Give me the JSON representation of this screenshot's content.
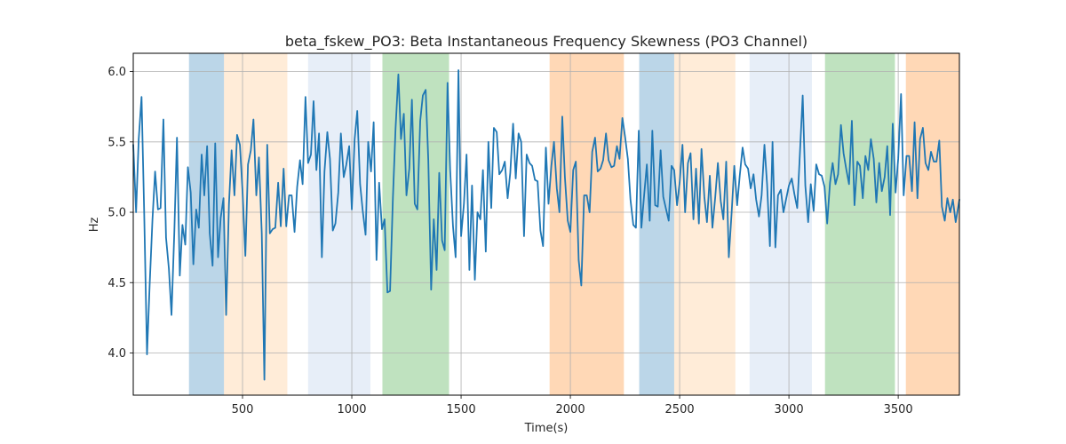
{
  "chart_data": {
    "type": "line",
    "title": "beta_fskew_PO3: Beta Instantaneous Frequency Skewness (PO3 Channel)",
    "xlabel": "Time(s)",
    "ylabel": "Hz",
    "xlim": [
      0,
      3780
    ],
    "ylim": [
      3.7,
      6.13
    ],
    "xticks": [
      500,
      1000,
      1500,
      2000,
      2500,
      3000,
      3500
    ],
    "yticks": [
      4.0,
      4.5,
      5.0,
      5.5,
      6.0
    ],
    "xtick_labels": [
      "500",
      "1000",
      "1500",
      "2000",
      "2500",
      "3000",
      "3500"
    ],
    "ytick_labels": [
      "4.0",
      "4.5",
      "5.0",
      "5.5",
      "6.0"
    ],
    "grid": true,
    "line_color": "#1f77b4",
    "shaded_regions": [
      {
        "start": 255,
        "end": 415,
        "color": "#1f77b4",
        "opacity": 0.3
      },
      {
        "start": 415,
        "end": 705,
        "color": "#ffbf7f",
        "opacity": 0.3
      },
      {
        "start": 800,
        "end": 1085,
        "color": "#aec7e8",
        "opacity": 0.3
      },
      {
        "start": 1140,
        "end": 1445,
        "color": "#2ca02c",
        "opacity": 0.3
      },
      {
        "start": 1905,
        "end": 2245,
        "color": "#ff7f0e",
        "opacity": 0.3
      },
      {
        "start": 2315,
        "end": 2475,
        "color": "#1f77b4",
        "opacity": 0.3
      },
      {
        "start": 2475,
        "end": 2755,
        "color": "#ffbf7f",
        "opacity": 0.3
      },
      {
        "start": 2820,
        "end": 3105,
        "color": "#aec7e8",
        "opacity": 0.3
      },
      {
        "start": 3165,
        "end": 3485,
        "color": "#2ca02c",
        "opacity": 0.3
      },
      {
        "start": 3535,
        "end": 3780,
        "color": "#ff7f0e",
        "opacity": 0.3
      }
    ],
    "series": [
      {
        "values": [
          [
            0,
            5.48
          ],
          [
            13,
            5.0
          ],
          [
            25,
            5.52
          ],
          [
            38,
            5.82
          ],
          [
            50,
            5.0
          ],
          [
            63,
            3.99
          ],
          [
            75,
            4.48
          ],
          [
            88,
            4.95
          ],
          [
            100,
            5.29
          ],
          [
            113,
            5.02
          ],
          [
            125,
            5.03
          ],
          [
            138,
            5.66
          ],
          [
            150,
            4.82
          ],
          [
            163,
            4.6
          ],
          [
            175,
            4.27
          ],
          [
            188,
            4.86
          ],
          [
            200,
            5.53
          ],
          [
            213,
            4.55
          ],
          [
            225,
            4.91
          ],
          [
            238,
            4.77
          ],
          [
            250,
            5.32
          ],
          [
            263,
            5.14
          ],
          [
            275,
            4.63
          ],
          [
            288,
            5.02
          ],
          [
            300,
            4.89
          ],
          [
            313,
            5.41
          ],
          [
            325,
            5.12
          ],
          [
            338,
            5.47
          ],
          [
            350,
            4.85
          ],
          [
            363,
            4.62
          ],
          [
            375,
            5.49
          ],
          [
            388,
            4.68
          ],
          [
            400,
            4.96
          ],
          [
            413,
            5.1
          ],
          [
            425,
            4.27
          ],
          [
            438,
            5.06
          ],
          [
            450,
            5.44
          ],
          [
            463,
            5.12
          ],
          [
            475,
            5.55
          ],
          [
            488,
            5.48
          ],
          [
            500,
            5.15
          ],
          [
            513,
            4.69
          ],
          [
            525,
            5.34
          ],
          [
            538,
            5.44
          ],
          [
            550,
            5.66
          ],
          [
            563,
            5.12
          ],
          [
            575,
            5.39
          ],
          [
            588,
            4.85
          ],
          [
            600,
            3.81
          ],
          [
            613,
            5.48
          ],
          [
            625,
            4.85
          ],
          [
            638,
            4.88
          ],
          [
            650,
            4.89
          ],
          [
            663,
            5.21
          ],
          [
            675,
            4.9
          ],
          [
            688,
            5.31
          ],
          [
            700,
            4.9
          ],
          [
            713,
            5.12
          ],
          [
            725,
            5.12
          ],
          [
            738,
            4.86
          ],
          [
            750,
            5.18
          ],
          [
            763,
            5.37
          ],
          [
            775,
            5.2
          ],
          [
            788,
            5.82
          ],
          [
            800,
            5.35
          ],
          [
            813,
            5.41
          ],
          [
            825,
            5.79
          ],
          [
            838,
            5.3
          ],
          [
            850,
            5.56
          ],
          [
            863,
            4.68
          ],
          [
            875,
            5.29
          ],
          [
            888,
            5.57
          ],
          [
            900,
            5.38
          ],
          [
            913,
            4.87
          ],
          [
            925,
            4.92
          ],
          [
            938,
            5.14
          ],
          [
            950,
            5.56
          ],
          [
            963,
            5.25
          ],
          [
            975,
            5.34
          ],
          [
            988,
            5.47
          ],
          [
            1000,
            5.02
          ],
          [
            1013,
            5.52
          ],
          [
            1025,
            5.72
          ],
          [
            1038,
            5.2
          ],
          [
            1050,
            5.01
          ],
          [
            1063,
            4.84
          ],
          [
            1075,
            5.5
          ],
          [
            1088,
            5.29
          ],
          [
            1100,
            5.64
          ],
          [
            1113,
            4.66
          ],
          [
            1125,
            5.21
          ],
          [
            1138,
            4.88
          ],
          [
            1150,
            4.95
          ],
          [
            1163,
            4.43
          ],
          [
            1175,
            4.44
          ],
          [
            1188,
            5.1
          ],
          [
            1200,
            5.59
          ],
          [
            1213,
            5.98
          ],
          [
            1225,
            5.52
          ],
          [
            1238,
            5.7
          ],
          [
            1250,
            5.12
          ],
          [
            1263,
            5.31
          ],
          [
            1275,
            5.8
          ],
          [
            1288,
            5.06
          ],
          [
            1300,
            5.02
          ],
          [
            1313,
            5.65
          ],
          [
            1325,
            5.83
          ],
          [
            1338,
            5.87
          ],
          [
            1350,
            5.37
          ],
          [
            1363,
            4.45
          ],
          [
            1375,
            4.95
          ],
          [
            1388,
            4.59
          ],
          [
            1400,
            5.28
          ],
          [
            1413,
            4.8
          ],
          [
            1425,
            4.73
          ],
          [
            1438,
            5.92
          ],
          [
            1450,
            5.3
          ],
          [
            1463,
            4.9
          ],
          [
            1475,
            4.68
          ],
          [
            1488,
            6.01
          ],
          [
            1500,
            4.83
          ],
          [
            1513,
            5.06
          ],
          [
            1525,
            5.41
          ],
          [
            1538,
            4.59
          ],
          [
            1550,
            5.19
          ],
          [
            1563,
            4.52
          ],
          [
            1575,
            5.0
          ],
          [
            1588,
            4.95
          ],
          [
            1600,
            5.3
          ],
          [
            1613,
            4.72
          ],
          [
            1625,
            5.5
          ],
          [
            1638,
            5.03
          ],
          [
            1650,
            5.6
          ],
          [
            1663,
            5.57
          ],
          [
            1675,
            5.27
          ],
          [
            1688,
            5.3
          ],
          [
            1700,
            5.36
          ],
          [
            1713,
            5.1
          ],
          [
            1725,
            5.28
          ],
          [
            1738,
            5.63
          ],
          [
            1750,
            5.24
          ],
          [
            1763,
            5.56
          ],
          [
            1775,
            5.5
          ],
          [
            1788,
            4.83
          ],
          [
            1800,
            5.41
          ],
          [
            1813,
            5.35
          ],
          [
            1825,
            5.33
          ],
          [
            1838,
            5.23
          ],
          [
            1850,
            5.22
          ],
          [
            1863,
            4.87
          ],
          [
            1875,
            4.76
          ],
          [
            1888,
            5.46
          ],
          [
            1900,
            5.06
          ],
          [
            1913,
            5.33
          ],
          [
            1925,
            5.5
          ],
          [
            1938,
            5.17
          ],
          [
            1950,
            5.0
          ],
          [
            1963,
            5.68
          ],
          [
            1975,
            5.25
          ],
          [
            1988,
            4.94
          ],
          [
            2000,
            4.86
          ],
          [
            2013,
            5.3
          ],
          [
            2025,
            5.36
          ],
          [
            2038,
            4.66
          ],
          [
            2050,
            4.48
          ],
          [
            2063,
            5.12
          ],
          [
            2075,
            5.12
          ],
          [
            2088,
            5.0
          ],
          [
            2100,
            5.43
          ],
          [
            2113,
            5.53
          ],
          [
            2125,
            5.29
          ],
          [
            2138,
            5.31
          ],
          [
            2150,
            5.37
          ],
          [
            2163,
            5.56
          ],
          [
            2175,
            5.37
          ],
          [
            2188,
            5.32
          ],
          [
            2200,
            5.33
          ],
          [
            2213,
            5.47
          ],
          [
            2225,
            5.38
          ],
          [
            2238,
            5.67
          ],
          [
            2250,
            5.54
          ],
          [
            2263,
            5.38
          ],
          [
            2275,
            5.09
          ],
          [
            2288,
            4.91
          ],
          [
            2300,
            4.89
          ],
          [
            2313,
            5.58
          ],
          [
            2325,
            4.89
          ],
          [
            2338,
            5.13
          ],
          [
            2350,
            5.34
          ],
          [
            2363,
            4.94
          ],
          [
            2375,
            5.58
          ],
          [
            2388,
            5.05
          ],
          [
            2400,
            5.04
          ],
          [
            2413,
            5.44
          ],
          [
            2425,
            5.11
          ],
          [
            2438,
            5.02
          ],
          [
            2450,
            4.94
          ],
          [
            2463,
            5.33
          ],
          [
            2475,
            5.3
          ],
          [
            2488,
            5.05
          ],
          [
            2500,
            5.21
          ],
          [
            2513,
            5.48
          ],
          [
            2525,
            5.0
          ],
          [
            2538,
            5.35
          ],
          [
            2550,
            5.42
          ],
          [
            2563,
            4.95
          ],
          [
            2575,
            5.31
          ],
          [
            2588,
            4.92
          ],
          [
            2600,
            5.45
          ],
          [
            2613,
            5.11
          ],
          [
            2625,
            4.93
          ],
          [
            2638,
            5.26
          ],
          [
            2650,
            4.89
          ],
          [
            2663,
            5.11
          ],
          [
            2675,
            5.35
          ],
          [
            2688,
            5.08
          ],
          [
            2700,
            4.95
          ],
          [
            2713,
            5.36
          ],
          [
            2725,
            4.68
          ],
          [
            2738,
            5.0
          ],
          [
            2750,
            5.33
          ],
          [
            2763,
            5.05
          ],
          [
            2775,
            5.26
          ],
          [
            2788,
            5.46
          ],
          [
            2800,
            5.34
          ],
          [
            2813,
            5.31
          ],
          [
            2825,
            5.17
          ],
          [
            2838,
            5.27
          ],
          [
            2850,
            5.09
          ],
          [
            2863,
            4.97
          ],
          [
            2875,
            5.12
          ],
          [
            2888,
            5.48
          ],
          [
            2900,
            5.2
          ],
          [
            2913,
            4.76
          ],
          [
            2925,
            5.5
          ],
          [
            2938,
            4.75
          ],
          [
            2950,
            5.12
          ],
          [
            2963,
            5.16
          ],
          [
            2975,
            5.0
          ],
          [
            2988,
            5.1
          ],
          [
            3000,
            5.19
          ],
          [
            3013,
            5.24
          ],
          [
            3025,
            5.13
          ],
          [
            3038,
            5.03
          ],
          [
            3050,
            5.41
          ],
          [
            3063,
            5.83
          ],
          [
            3075,
            5.19
          ],
          [
            3088,
            4.93
          ],
          [
            3100,
            5.2
          ],
          [
            3113,
            5.01
          ],
          [
            3125,
            5.34
          ],
          [
            3138,
            5.27
          ],
          [
            3150,
            5.26
          ],
          [
            3163,
            5.18
          ],
          [
            3175,
            4.92
          ],
          [
            3188,
            5.21
          ],
          [
            3200,
            5.35
          ],
          [
            3213,
            5.2
          ],
          [
            3225,
            5.27
          ],
          [
            3238,
            5.62
          ],
          [
            3250,
            5.42
          ],
          [
            3263,
            5.3
          ],
          [
            3275,
            5.2
          ],
          [
            3288,
            5.65
          ],
          [
            3300,
            5.05
          ],
          [
            3313,
            5.36
          ],
          [
            3325,
            5.33
          ],
          [
            3338,
            5.1
          ],
          [
            3350,
            5.4
          ],
          [
            3363,
            5.3
          ],
          [
            3375,
            5.52
          ],
          [
            3388,
            5.38
          ],
          [
            3400,
            5.07
          ],
          [
            3413,
            5.35
          ],
          [
            3425,
            5.15
          ],
          [
            3438,
            5.25
          ],
          [
            3450,
            5.47
          ],
          [
            3463,
            4.98
          ],
          [
            3475,
            5.63
          ],
          [
            3488,
            5.14
          ],
          [
            3500,
            5.38
          ],
          [
            3513,
            5.84
          ],
          [
            3525,
            5.12
          ],
          [
            3538,
            5.4
          ],
          [
            3550,
            5.4
          ],
          [
            3563,
            5.15
          ],
          [
            3575,
            5.64
          ],
          [
            3588,
            5.1
          ],
          [
            3600,
            5.52
          ],
          [
            3613,
            5.6
          ],
          [
            3625,
            5.35
          ],
          [
            3638,
            5.3
          ],
          [
            3650,
            5.43
          ],
          [
            3663,
            5.36
          ],
          [
            3675,
            5.36
          ],
          [
            3688,
            5.51
          ],
          [
            3700,
            5.04
          ],
          [
            3713,
            4.94
          ],
          [
            3725,
            5.1
          ],
          [
            3738,
            5.0
          ],
          [
            3750,
            5.09
          ],
          [
            3763,
            4.93
          ],
          [
            3780,
            5.09
          ]
        ]
      }
    ]
  }
}
